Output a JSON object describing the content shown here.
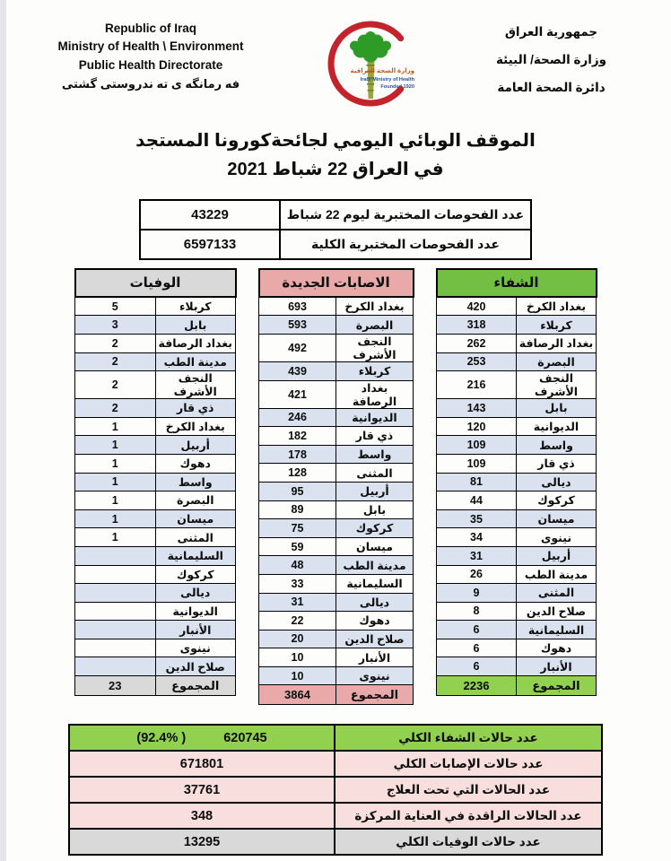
{
  "colors": {
    "recovery_header_green": "#72bf44",
    "total_green": "#92d050",
    "cases_header_pink": "#e9a9a9",
    "summary_pink": "#f8dedd",
    "gray": "#d9d9d9",
    "alt_row_blue": "#dae2f0",
    "crescent_red": "#c4232b",
    "palm_green": "#2d9b26"
  },
  "header": {
    "english_lines": [
      "Republic of Iraq",
      "Ministry of Health \\ Environment",
      "Public Health Directorate"
    ],
    "kurdish_line": "فه رمانگه ی ته ندروستی گشتی",
    "arabic_lines": [
      "جمهورية العراق",
      "وزارة الصحة/ البيئة",
      "دائرة الصحة العامة"
    ],
    "logo": {
      "arabic": "وزارة الصحة العراقية",
      "english": "Iraqi Ministry of Health",
      "founded": "Founded 1920"
    }
  },
  "title": {
    "line1": "الموقف الوبائي اليومي لجائحةكورونا المستجد",
    "line2": "في العراق  22  شباط  2021"
  },
  "tests": {
    "rows": [
      {
        "label": "عدد الفحوصات المختبرية  ليوم 22 شباط",
        "value": "43229"
      },
      {
        "label": "عدد الفحوصات المختبرية الكلية",
        "value": "6597133"
      }
    ]
  },
  "columns": {
    "deaths": {
      "title": "الوفيات",
      "total_label": "المجموع",
      "total": "23",
      "rows": [
        {
          "label": "كربلاء",
          "value": "5"
        },
        {
          "label": "بابل",
          "value": "3"
        },
        {
          "label": "بغداد الرصافة",
          "value": "2"
        },
        {
          "label": "مدينة الطب",
          "value": "2"
        },
        {
          "label": "النجف الأشرف",
          "value": "2"
        },
        {
          "label": "ذي قار",
          "value": "2"
        },
        {
          "label": "بغداد الكرخ",
          "value": "1"
        },
        {
          "label": "أربيل",
          "value": "1"
        },
        {
          "label": "دهوك",
          "value": "1"
        },
        {
          "label": "واسط",
          "value": "1"
        },
        {
          "label": "البصرة",
          "value": "1"
        },
        {
          "label": "ميسان",
          "value": "1"
        },
        {
          "label": "المثنى",
          "value": "1"
        },
        {
          "label": "السليمانية",
          "value": ""
        },
        {
          "label": "كركوك",
          "value": ""
        },
        {
          "label": "ديالى",
          "value": ""
        },
        {
          "label": "الديوانية",
          "value": ""
        },
        {
          "label": "الأنبار",
          "value": ""
        },
        {
          "label": "نينوى",
          "value": ""
        },
        {
          "label": "صلاح الدين",
          "value": ""
        }
      ]
    },
    "cases": {
      "title": "الاصابات الجديدة",
      "total_label": "المجموع",
      "total": "3864",
      "rows": [
        {
          "label": "بغداد الكرخ",
          "value": "693"
        },
        {
          "label": "البصرة",
          "value": "593"
        },
        {
          "label": "النجف الأشرف",
          "value": "492"
        },
        {
          "label": "كربلاء",
          "value": "439"
        },
        {
          "label": "بغداد الرصافة",
          "value": "421"
        },
        {
          "label": "الديوانية",
          "value": "246"
        },
        {
          "label": "ذي قار",
          "value": "182"
        },
        {
          "label": "واسط",
          "value": "178"
        },
        {
          "label": "المثنى",
          "value": "128"
        },
        {
          "label": "أربيل",
          "value": "95"
        },
        {
          "label": "بابل",
          "value": "89"
        },
        {
          "label": "كركوك",
          "value": "75"
        },
        {
          "label": "ميسان",
          "value": "59"
        },
        {
          "label": "مدينة الطب",
          "value": "48"
        },
        {
          "label": "السليمانية",
          "value": "33"
        },
        {
          "label": "ديالى",
          "value": "31"
        },
        {
          "label": "دهوك",
          "value": "22"
        },
        {
          "label": "صلاح الدين",
          "value": "20"
        },
        {
          "label": "الأنبار",
          "value": "10"
        },
        {
          "label": "نينوى",
          "value": "10"
        }
      ]
    },
    "recovery": {
      "title": "الشفاء",
      "total_label": "المجموع",
      "total": "2236",
      "rows": [
        {
          "label": "بغداد الكرخ",
          "value": "420"
        },
        {
          "label": "كربلاء",
          "value": "318"
        },
        {
          "label": "بغداد الرصافة",
          "value": "262"
        },
        {
          "label": "البصرة",
          "value": "253"
        },
        {
          "label": "النجف الأشرف",
          "value": "216"
        },
        {
          "label": "بابل",
          "value": "143"
        },
        {
          "label": "الديوانية",
          "value": "120"
        },
        {
          "label": "واسط",
          "value": "109"
        },
        {
          "label": "ذي قار",
          "value": "109"
        },
        {
          "label": "ديالى",
          "value": "81"
        },
        {
          "label": "كركوك",
          "value": "44"
        },
        {
          "label": "ميسان",
          "value": "35"
        },
        {
          "label": "نينوى",
          "value": "34"
        },
        {
          "label": "أربيل",
          "value": "31"
        },
        {
          "label": "مدينة الطب",
          "value": "26"
        },
        {
          "label": "المثنى",
          "value": "9"
        },
        {
          "label": "صلاح الدين",
          "value": "8"
        },
        {
          "label": "السليمانية",
          "value": "6"
        },
        {
          "label": "دهوك",
          "value": "6"
        },
        {
          "label": "الأنبار",
          "value": "6"
        }
      ]
    }
  },
  "summary": {
    "rows": [
      {
        "label": "عدد حالات الشفاء الكلي",
        "value": "620745",
        "percent": "(92.4% )",
        "style": "green"
      },
      {
        "label": "عدد حالات الإصابات الكلي",
        "value": "671801",
        "style": "pink"
      },
      {
        "label": "عدد الحالات التي تحت العلاج",
        "value": "37761",
        "style": "pink"
      },
      {
        "label": "عدد الحالات الراقدة في العناية المركزة",
        "value": "348",
        "style": "pink"
      },
      {
        "label": "عدد حالات الوفيات الكلي",
        "value": "13295",
        "style": "gray"
      }
    ]
  }
}
